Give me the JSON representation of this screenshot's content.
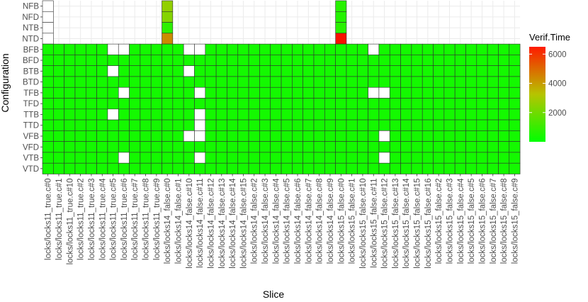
{
  "chart_data": {
    "type": "heatmap",
    "title": "",
    "xlabel": "Slice",
    "ylabel": "Configuration",
    "x_categories": [
      "locks/locks11_true.c#0",
      "locks/locks11_true.c#1",
      "locks/locks11_true.c#10",
      "locks/locks11_true.c#2",
      "locks/locks11_true.c#3",
      "locks/locks11_true.c#4",
      "locks/locks11_true.c#5",
      "locks/locks11_true.c#6",
      "locks/locks11_true.c#7",
      "locks/locks11_true.c#8",
      "locks/locks11_true.c#9",
      "locks/locks14_false.c#0",
      "locks/locks14_false.c#1",
      "locks/locks14_false.c#10",
      "locks/locks14_false.c#11",
      "locks/locks14_false.c#12",
      "locks/locks14_false.c#13",
      "locks/locks14_false.c#14",
      "locks/locks14_false.c#15",
      "locks/locks14_false.c#2",
      "locks/locks14_false.c#3",
      "locks/locks14_false.c#4",
      "locks/locks14_false.c#5",
      "locks/locks14_false.c#6",
      "locks/locks14_false.c#7",
      "locks/locks14_false.c#8",
      "locks/locks14_false.c#9",
      "locks/locks15_false.c#0",
      "locks/locks15_false.c#1",
      "locks/locks15_false.c#10",
      "locks/locks15_false.c#11",
      "locks/locks15_false.c#12",
      "locks/locks15_false.c#13",
      "locks/locks15_false.c#14",
      "locks/locks15_false.c#15",
      "locks/locks15_false.c#16",
      "locks/locks15_false.c#2",
      "locks/locks15_false.c#3",
      "locks/locks15_false.c#4",
      "locks/locks15_false.c#5",
      "locks/locks15_false.c#6",
      "locks/locks15_false.c#7",
      "locks/locks15_false.c#8",
      "locks/locks15_false.c#9"
    ],
    "y_categories": [
      "NFB",
      "NFD",
      "NTB",
      "NTD",
      "BFB",
      "BFD",
      "BTB",
      "BTD",
      "TFB",
      "TFD",
      "TTB",
      "TTD",
      "VFB",
      "VFD",
      "VTB",
      "VTD"
    ],
    "legend": {
      "title": "Verif.Time",
      "ticks": [
        2000,
        4000,
        6000
      ],
      "range": [
        0,
        6500
      ],
      "colors": {
        "low": "#00ff00",
        "high": "#ff0000",
        "mid": "#b6c400",
        "na": "#ffffff"
      },
      "position": "right"
    },
    "cells": [
      {
        "y": "NFB",
        "x": "locks/locks11_true.c#0",
        "value": null
      },
      {
        "y": "NFB",
        "x": "locks/locks14_false.c#0",
        "value": 2600
      },
      {
        "y": "NFB",
        "x": "locks/locks15_false.c#0",
        "value": 700
      },
      {
        "y": "NFD",
        "x": "locks/locks11_true.c#0",
        "value": null
      },
      {
        "y": "NFD",
        "x": "locks/locks14_false.c#0",
        "value": 2350
      },
      {
        "y": "NFD",
        "x": "locks/locks15_false.c#0",
        "value": 650
      },
      {
        "y": "NTB",
        "x": "locks/locks11_true.c#0",
        "value": null
      },
      {
        "y": "NTB",
        "x": "locks/locks14_false.c#0",
        "value": 800
      },
      {
        "y": "NTB",
        "x": "locks/locks15_false.c#0",
        "value": 750
      },
      {
        "y": "NTD",
        "x": "locks/locks11_true.c#0",
        "value": null
      },
      {
        "y": "NTD",
        "x": "locks/locks14_false.c#0",
        "value": 4200
      },
      {
        "y": "NTD",
        "x": "locks/locks15_false.c#0",
        "value": 6200
      }
    ],
    "default_value": 350,
    "rows_only_listed_cells": [
      "NFB",
      "NFD",
      "NTB",
      "NTD"
    ],
    "missing_cells": [
      {
        "y": "BFB",
        "x": "locks/locks11_true.c#5"
      },
      {
        "y": "BFB",
        "x": "locks/locks11_true.c#6"
      },
      {
        "y": "BFB",
        "x": "locks/locks14_false.c#10"
      },
      {
        "y": "BFB",
        "x": "locks/locks14_false.c#11"
      },
      {
        "y": "BFB",
        "x": "locks/locks15_false.c#11"
      },
      {
        "y": "BTB",
        "x": "locks/locks11_true.c#5"
      },
      {
        "y": "BTB",
        "x": "locks/locks14_false.c#10"
      },
      {
        "y": "TFB",
        "x": "locks/locks11_true.c#6"
      },
      {
        "y": "TFB",
        "x": "locks/locks14_false.c#11"
      },
      {
        "y": "TFB",
        "x": "locks/locks15_false.c#11"
      },
      {
        "y": "TFB",
        "x": "locks/locks15_false.c#12"
      },
      {
        "y": "TTB",
        "x": "locks/locks11_true.c#5"
      },
      {
        "y": "TTB",
        "x": "locks/locks14_false.c#11"
      },
      {
        "y": "TTD",
        "x": "locks/locks14_false.c#11"
      },
      {
        "y": "VFB",
        "x": "locks/locks14_false.c#10"
      },
      {
        "y": "VFB",
        "x": "locks/locks14_false.c#11"
      },
      {
        "y": "VFB",
        "x": "locks/locks15_false.c#12"
      },
      {
        "y": "VTB",
        "x": "locks/locks11_true.c#6"
      },
      {
        "y": "VTB",
        "x": "locks/locks14_false.c#11"
      },
      {
        "y": "VTB",
        "x": "locks/locks15_false.c#12"
      }
    ]
  }
}
